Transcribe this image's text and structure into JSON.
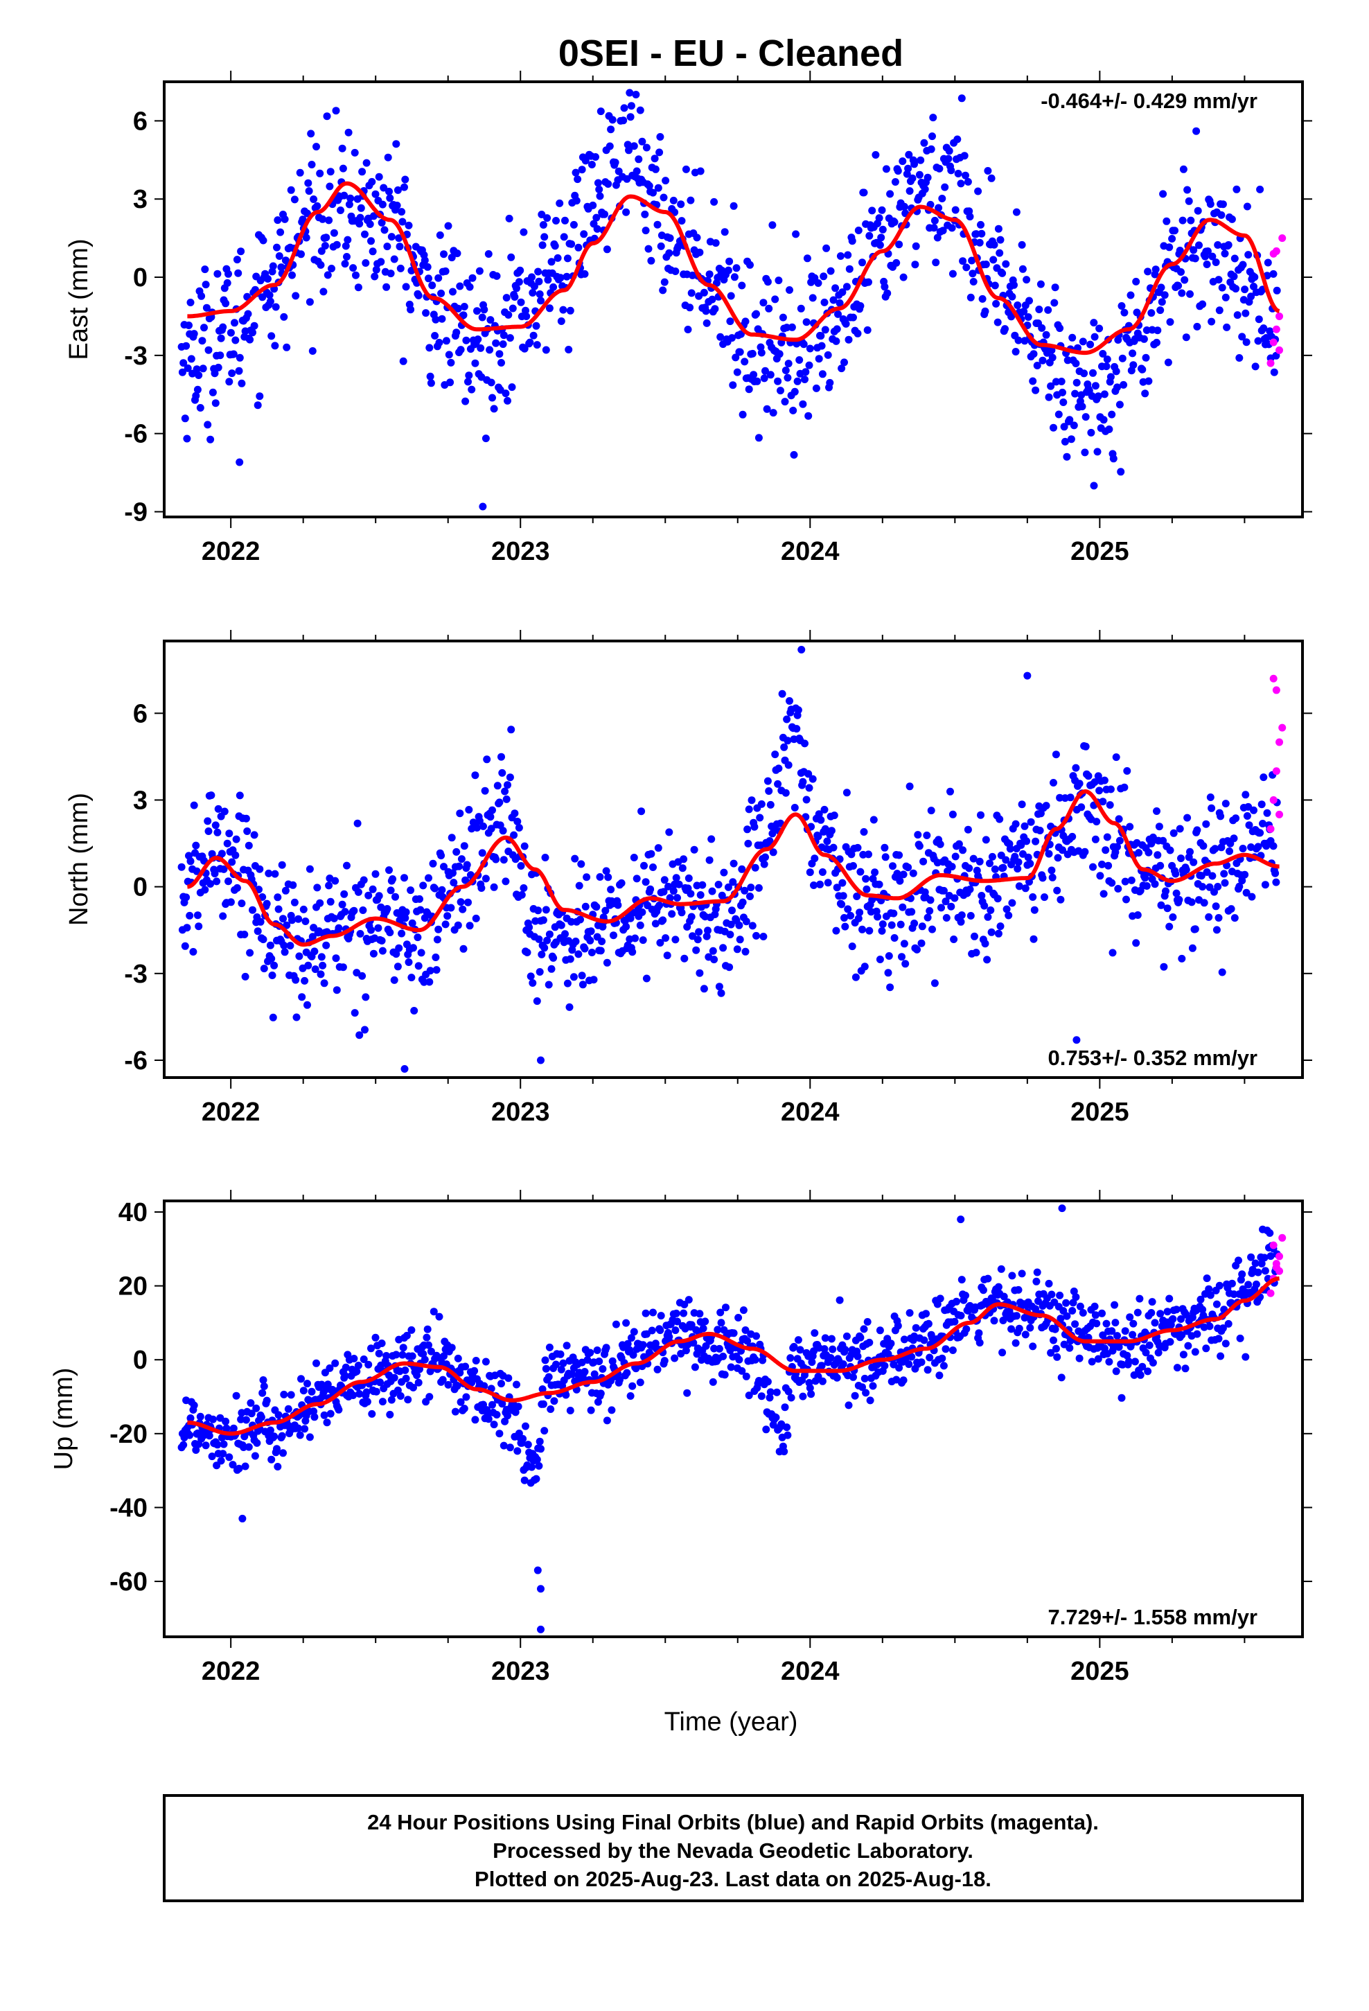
{
  "title": "0SEI  - EU - Cleaned",
  "xlabel": "Time (year)",
  "colors": {
    "final": "#0000ff",
    "rapid": "#ff00ff",
    "fit": "#ff0000",
    "frame": "#000000"
  },
  "footer": {
    "line1": "24 Hour Positions Using Final Orbits (blue) and Rapid Orbits (magenta).",
    "line2": "Processed by the Nevada Geodetic Laboratory.",
    "line3": "Plotted on 2025-Aug-23. Last data on 2025-Aug-18."
  },
  "chart_data": [
    {
      "type": "scatter",
      "component": "East",
      "ylabel": "East (mm)",
      "rate": "-0.464+/- 0.429 mm/yr",
      "rate_position": "top-right",
      "xlim": [
        2021.77,
        2025.7
      ],
      "ylim": [
        -9.2,
        7.5
      ],
      "xticks": [
        2022,
        2023,
        2024,
        2025
      ],
      "xtick_labels": [
        "2022",
        "2023",
        "2024",
        "2025"
      ],
      "yticks": [
        6,
        3,
        0,
        -3,
        -6,
        -9
      ],
      "ytick_labels": [
        "6",
        "3",
        "0",
        "-3",
        "-6",
        "-9"
      ],
      "fit": {
        "name": "model",
        "x": [
          2021.85,
          2022.0,
          2022.15,
          2022.3,
          2022.4,
          2022.55,
          2022.7,
          2022.85,
          2023.0,
          2023.15,
          2023.25,
          2023.38,
          2023.5,
          2023.65,
          2023.8,
          2023.95,
          2024.1,
          2024.25,
          2024.38,
          2024.5,
          2024.65,
          2024.8,
          2024.95,
          2025.1,
          2025.25,
          2025.38,
          2025.5,
          2025.62
        ],
        "y": [
          -1.5,
          -1.3,
          -0.3,
          2.5,
          3.6,
          2.2,
          -0.8,
          -2.0,
          -1.9,
          -0.5,
          1.3,
          3.1,
          2.5,
          -0.3,
          -2.2,
          -2.4,
          -1.2,
          1.0,
          2.7,
          2.2,
          -0.8,
          -2.6,
          -2.9,
          -2.0,
          0.5,
          2.2,
          1.6,
          -1.3
        ]
      },
      "final_trend": {
        "x": [
          2021.85,
          2022.0,
          2022.15,
          2022.3,
          2022.4,
          2022.55,
          2022.7,
          2022.85,
          2023.0,
          2023.15,
          2023.25,
          2023.38,
          2023.5,
          2023.65,
          2023.8,
          2023.95,
          2024.1,
          2024.25,
          2024.38,
          2024.5,
          2024.65,
          2024.8,
          2024.95,
          2025.1,
          2025.25,
          2025.38,
          2025.5,
          2025.6
        ],
        "y": [
          -3.0,
          -2.0,
          0.0,
          2.5,
          2.5,
          2.0,
          -1.0,
          -2.5,
          -1.0,
          0.5,
          3.0,
          5.0,
          2.0,
          0.5,
          -2.5,
          -2.5,
          -1.5,
          1.0,
          3.5,
          3.5,
          -0.5,
          -2.5,
          -4.5,
          -3.0,
          0.5,
          1.5,
          0.0,
          -1.5
        ]
      },
      "final_noise": 1.5,
      "final_outliers": {
        "x": [
          2022.03,
          2022.87,
          2024.98
        ],
        "y": [
          -7.1,
          -8.8,
          -8.0
        ]
      },
      "rapid": {
        "x": [
          2025.59,
          2025.6,
          2025.61,
          2025.62,
          2025.63,
          2025.6,
          2025.61,
          2025.62
        ],
        "y": [
          -3.3,
          -2.5,
          -2.0,
          -1.5,
          1.5,
          0.9,
          1.0,
          -2.8
        ]
      }
    },
    {
      "type": "scatter",
      "component": "North",
      "ylabel": "North (mm)",
      "rate": "0.753+/- 0.352 mm/yr",
      "rate_position": "bottom-right",
      "xlim": [
        2021.77,
        2025.7
      ],
      "ylim": [
        -6.6,
        8.5
      ],
      "xticks": [
        2022,
        2023,
        2024,
        2025
      ],
      "xtick_labels": [
        "2022",
        "2023",
        "2024",
        "2025"
      ],
      "yticks": [
        6,
        3,
        0,
        -3,
        -6
      ],
      "ytick_labels": [
        "6",
        "3",
        "0",
        "-3",
        "-6"
      ],
      "fit": {
        "name": "model",
        "x": [
          2021.85,
          2021.95,
          2022.05,
          2022.15,
          2022.25,
          2022.35,
          2022.5,
          2022.65,
          2022.8,
          2022.95,
          2023.05,
          2023.15,
          2023.3,
          2023.45,
          2023.55,
          2023.7,
          2023.85,
          2023.95,
          2024.05,
          2024.2,
          2024.3,
          2024.45,
          2024.6,
          2024.75,
          2024.85,
          2024.95,
          2025.05,
          2025.15,
          2025.25,
          2025.4,
          2025.5,
          2025.62
        ],
        "y": [
          0.0,
          1.0,
          0.2,
          -1.3,
          -2.0,
          -1.7,
          -1.1,
          -1.5,
          0.0,
          1.7,
          0.6,
          -0.8,
          -1.2,
          -0.4,
          -0.6,
          -0.5,
          1.3,
          2.5,
          1.1,
          -0.3,
          -0.4,
          0.4,
          0.2,
          0.3,
          2.0,
          3.3,
          2.2,
          0.6,
          0.2,
          0.8,
          1.1,
          0.7
        ]
      },
      "final_trend": {
        "x": [
          2021.85,
          2021.95,
          2022.05,
          2022.15,
          2022.25,
          2022.35,
          2022.5,
          2022.65,
          2022.8,
          2022.95,
          2023.05,
          2023.15,
          2023.3,
          2023.45,
          2023.55,
          2023.7,
          2023.85,
          2023.95,
          2024.05,
          2024.2,
          2024.3,
          2024.45,
          2024.6,
          2024.75,
          2024.85,
          2024.95,
          2025.05,
          2025.15,
          2025.25,
          2025.4,
          2025.5,
          2025.6
        ],
        "y": [
          -0.5,
          1.5,
          0.5,
          -1.5,
          -2.0,
          -1.5,
          -1.0,
          -1.8,
          0.5,
          2.5,
          -1.5,
          -1.5,
          -1.5,
          -0.5,
          -0.5,
          -1.5,
          2.0,
          5.0,
          1.0,
          -0.5,
          -0.5,
          0.5,
          0.0,
          0.5,
          1.5,
          3.0,
          1.5,
          0.5,
          0.0,
          0.5,
          1.0,
          2.0
        ]
      },
      "final_noise": 1.2,
      "final_outliers": {
        "x": [
          2022.6,
          2023.07,
          2023.97,
          2024.75,
          2024.92
        ],
        "y": [
          -6.3,
          -6.0,
          8.2,
          7.3,
          -5.3
        ]
      },
      "rapid": {
        "x": [
          2025.59,
          2025.6,
          2025.61,
          2025.62,
          2025.63,
          2025.6,
          2025.61,
          2025.62
        ],
        "y": [
          2.0,
          3.0,
          4.0,
          5.0,
          5.5,
          7.2,
          6.8,
          2.5
        ]
      }
    },
    {
      "type": "scatter",
      "component": "Up",
      "ylabel": "Up (mm)",
      "rate": "7.729+/- 1.558 mm/yr",
      "rate_position": "bottom-right",
      "xlim": [
        2021.77,
        2025.7
      ],
      "ylim": [
        -75,
        43
      ],
      "xticks": [
        2022,
        2023,
        2024,
        2025
      ],
      "xtick_labels": [
        "2022",
        "2023",
        "2024",
        "2025"
      ],
      "yticks": [
        40,
        20,
        0,
        -20,
        -40,
        -60
      ],
      "ytick_labels": [
        "40",
        "20",
        "0",
        "-20",
        "-40",
        "-60"
      ],
      "fit": {
        "name": "model",
        "x": [
          2021.85,
          2022.0,
          2022.15,
          2022.3,
          2022.45,
          2022.6,
          2022.72,
          2022.85,
          2022.97,
          2023.1,
          2023.25,
          2023.4,
          2023.55,
          2023.65,
          2023.8,
          2023.95,
          2024.1,
          2024.25,
          2024.4,
          2024.55,
          2024.65,
          2024.8,
          2024.95,
          2025.1,
          2025.25,
          2025.4,
          2025.5,
          2025.62
        ],
        "y": [
          -17,
          -20,
          -17,
          -12,
          -6,
          -1,
          -2,
          -8,
          -11,
          -9,
          -6,
          -1,
          5,
          7,
          3,
          -3,
          -3,
          0,
          3,
          10,
          15,
          12,
          5,
          5,
          8,
          11,
          16,
          22
        ]
      },
      "final_trend": {
        "x": [
          2021.85,
          2022.0,
          2022.15,
          2022.3,
          2022.45,
          2022.6,
          2022.72,
          2022.85,
          2022.97,
          2023.05,
          2023.1,
          2023.25,
          2023.4,
          2023.55,
          2023.65,
          2023.8,
          2023.9,
          2023.95,
          2024.1,
          2024.25,
          2024.4,
          2024.55,
          2024.65,
          2024.8,
          2024.95,
          2025.1,
          2025.25,
          2025.4,
          2025.5,
          2025.6
        ],
        "y": [
          -18,
          -20,
          -18,
          -12,
          -6,
          -2,
          0,
          -8,
          -15,
          -30,
          -5,
          -5,
          2,
          8,
          5,
          2,
          -20,
          -3,
          0,
          0,
          5,
          12,
          15,
          12,
          6,
          3,
          8,
          12,
          18,
          25
        ]
      },
      "final_noise": 5.0,
      "final_outliers": {
        "x": [
          2022.04,
          2023.07,
          2023.07,
          2023.06,
          2024.52,
          2024.87
        ],
        "y": [
          -43,
          -73,
          -62,
          -57,
          38,
          41
        ]
      },
      "rapid": {
        "x": [
          2025.59,
          2025.6,
          2025.61,
          2025.62,
          2025.63,
          2025.6,
          2025.61,
          2025.62
        ],
        "y": [
          18,
          22,
          25,
          28,
          33,
          31,
          26,
          24
        ]
      }
    }
  ]
}
